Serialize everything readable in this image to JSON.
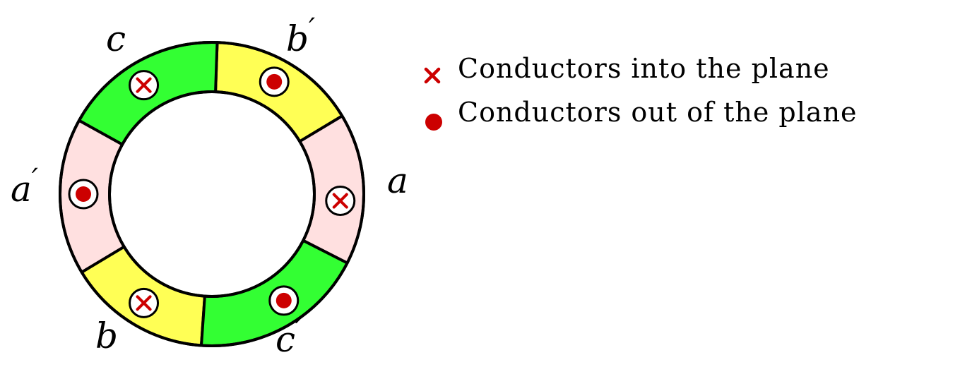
{
  "diagram": {
    "colors": {
      "green": "#33ff33",
      "yellow": "#ffff55",
      "pink": "#ffe0e0",
      "outline": "#000000",
      "marker": "#cc0000"
    },
    "segments": [
      {
        "id": "a",
        "label": "a",
        "prime": "",
        "fill": "pink",
        "conductor": "into"
      },
      {
        "id": "bp",
        "label": "b",
        "prime": "′",
        "fill": "yellow",
        "conductor": "out"
      },
      {
        "id": "c",
        "label": "c",
        "prime": "",
        "fill": "green",
        "conductor": "into"
      },
      {
        "id": "ap",
        "label": "a",
        "prime": "′",
        "fill": "pink",
        "conductor": "out"
      },
      {
        "id": "b",
        "label": "b",
        "prime": "",
        "fill": "yellow",
        "conductor": "into"
      },
      {
        "id": "cp",
        "label": "c",
        "prime": "′",
        "fill": "green",
        "conductor": "out"
      }
    ]
  },
  "legend": {
    "items": [
      {
        "symbol": "cross",
        "text": "Conductors into the plane"
      },
      {
        "symbol": "dot",
        "text": "Conductors out of the plane"
      }
    ]
  }
}
